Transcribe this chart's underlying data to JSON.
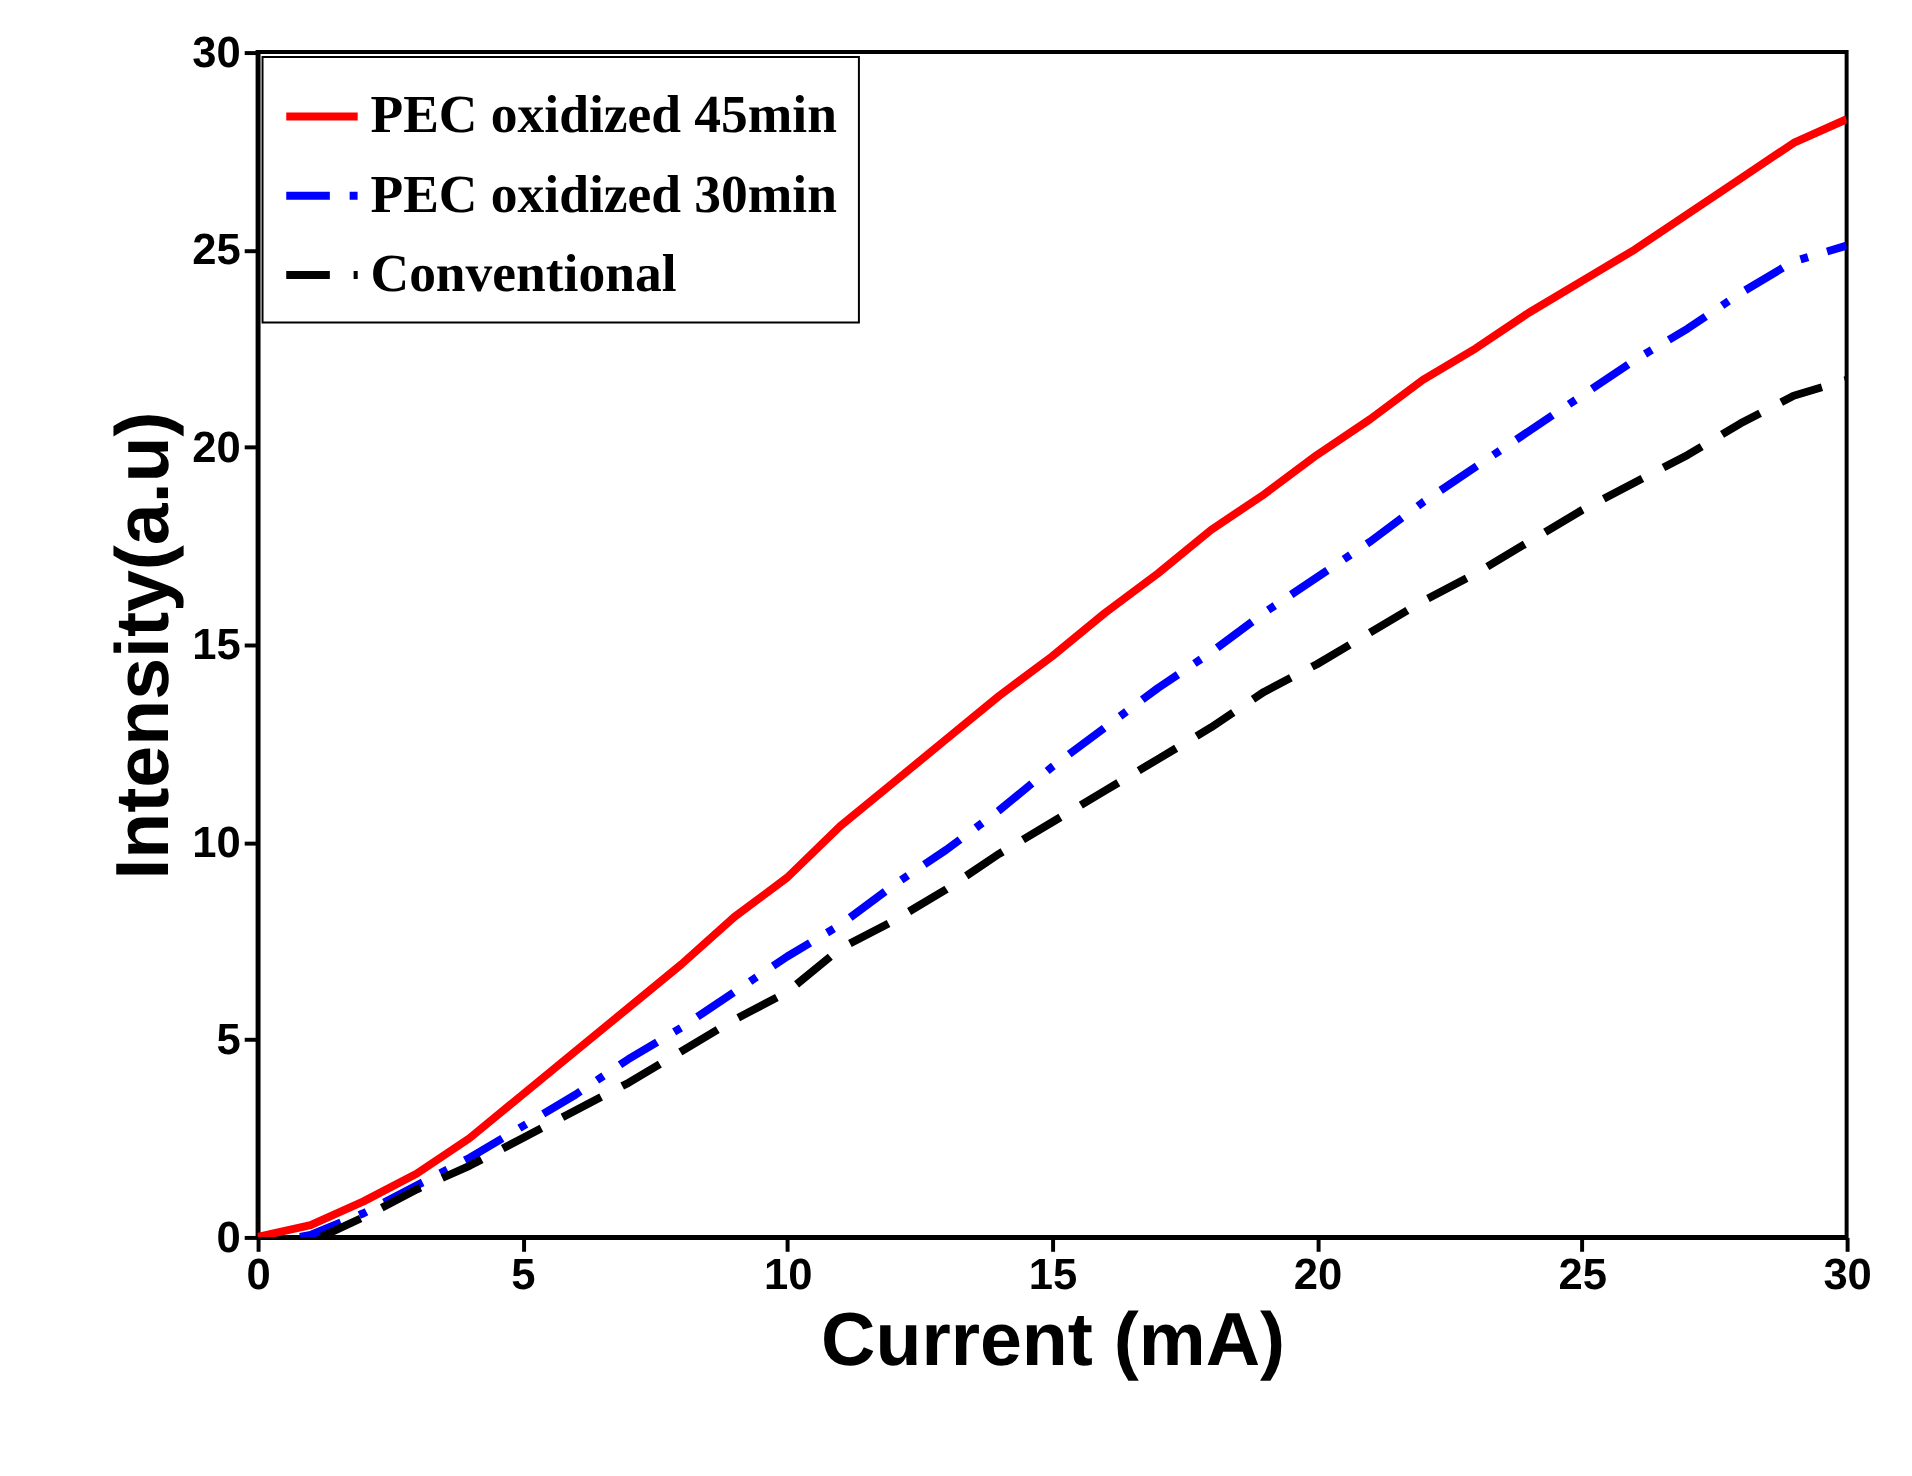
{
  "chart_data": {
    "type": "line",
    "xlabel": "Current (mA)",
    "ylabel": "Intensity(a.u)",
    "xlim": [
      0,
      30
    ],
    "xticks": [
      0,
      5,
      10,
      15,
      20,
      25,
      30
    ],
    "ylim": [
      0,
      30
    ],
    "yticks": [
      0,
      5,
      10,
      15,
      20,
      25,
      30
    ],
    "grid": false,
    "legend": "top left",
    "marker": "none",
    "series": [
      {
        "name": "PEC oxidized 45min",
        "color": "#ff0000",
        "line_style": "solid",
        "x": [
          0,
          1,
          2,
          3,
          4,
          5,
          6,
          7,
          8,
          9,
          10,
          11,
          12,
          13,
          14,
          15,
          16,
          17,
          18,
          19,
          20,
          21,
          22,
          23,
          24,
          25,
          26,
          27,
          28,
          29,
          30
        ],
        "values": [
          0,
          0.3,
          0.9,
          1.6,
          2.5,
          3.6,
          4.7,
          5.8,
          6.9,
          8.1,
          9.1,
          10.4,
          11.5,
          12.6,
          13.7,
          14.7,
          15.8,
          16.8,
          17.9,
          18.8,
          19.8,
          20.7,
          21.7,
          22.5,
          23.4,
          24.2,
          25.0,
          25.9,
          26.8,
          27.7,
          28.3
        ]
      },
      {
        "name": "PEC oxidized 30min",
        "color": "#0000ff",
        "line_style": "dashdot",
        "x": [
          0.8,
          1,
          2,
          3,
          4,
          5,
          6,
          7,
          8,
          9,
          10,
          11,
          12,
          13,
          14,
          15,
          16,
          17,
          18,
          19,
          20,
          21,
          22,
          23,
          24,
          25,
          26,
          27,
          28,
          29,
          30
        ],
        "values": [
          0,
          0.05,
          0.6,
          1.3,
          2.0,
          2.8,
          3.6,
          4.5,
          5.3,
          6.2,
          7.1,
          7.9,
          8.9,
          9.8,
          10.8,
          11.9,
          12.9,
          13.9,
          14.8,
          15.8,
          16.7,
          17.6,
          18.6,
          19.5,
          20.4,
          21.3,
          22.2,
          23.0,
          23.9,
          24.7,
          25.1
        ]
      },
      {
        "name": "Conventional",
        "color": "#000000",
        "line_style": "dashed",
        "x": [
          1.2,
          2,
          3,
          4,
          5,
          6,
          7,
          8,
          9,
          10,
          11,
          12,
          13,
          14,
          15,
          16,
          17,
          18,
          19,
          20,
          21,
          22,
          23,
          24,
          25,
          26,
          27,
          28,
          29,
          30
        ],
        "values": [
          0,
          0.5,
          1.2,
          1.8,
          2.5,
          3.2,
          3.9,
          4.7,
          5.5,
          6.2,
          7.3,
          8.0,
          8.8,
          9.7,
          10.5,
          11.3,
          12.1,
          12.9,
          13.8,
          14.5,
          15.3,
          16.1,
          16.8,
          17.6,
          18.4,
          19.1,
          19.8,
          20.6,
          21.3,
          21.7
        ]
      }
    ]
  }
}
